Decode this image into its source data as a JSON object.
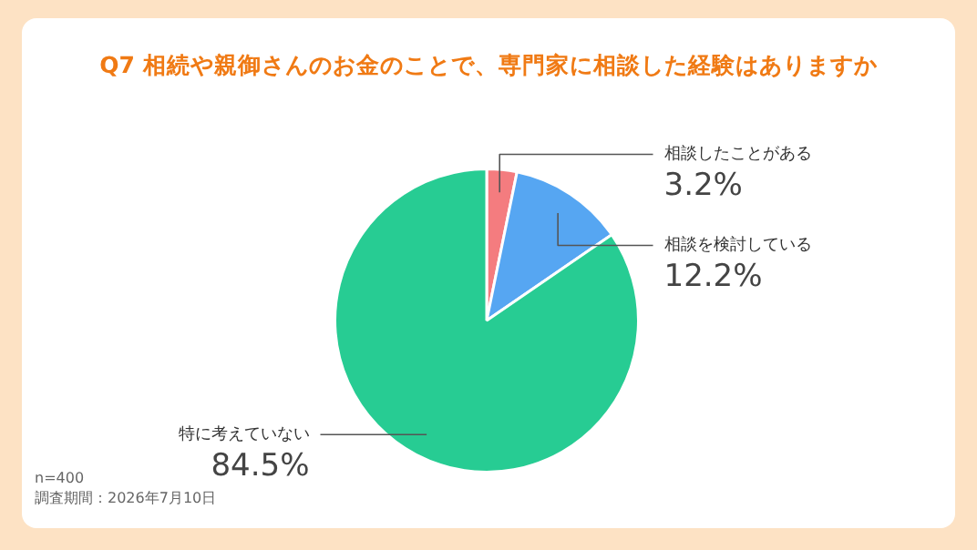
{
  "chart_data": {
    "type": "pie",
    "title": "Q7 相続や親御さんのお金のことで、専門家に相談した経験はありますか",
    "categories": [
      "相談したことがある",
      "相談を検討している",
      "特に考えていない"
    ],
    "values": [
      3.2,
      12.2,
      84.5
    ],
    "value_labels": [
      "3.2%",
      "12.2%",
      "84.5%"
    ],
    "colors": [
      "#f47c7f",
      "#56a6f2",
      "#27cc93"
    ],
    "legend": false,
    "annotations": [
      "n=400",
      "調査期間：2026年7月10日"
    ]
  }
}
